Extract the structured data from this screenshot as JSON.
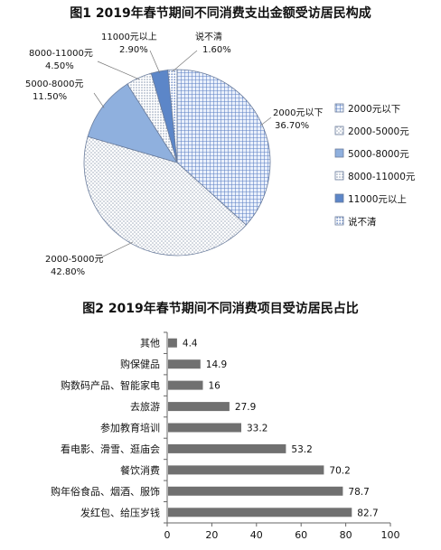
{
  "chart_data": [
    {
      "type": "pie",
      "title": "图1  2019年春节期间不同消费支出金额受访居民构成",
      "categories": [
        "2000元以下",
        "2000-5000元",
        "5000-8000元",
        "8000-11000元",
        "11000元以上",
        "说不清"
      ],
      "values": [
        36.7,
        42.8,
        11.5,
        4.5,
        2.9,
        1.6
      ],
      "value_labels": [
        "36.70%",
        "42.80%",
        "11.50%",
        "4.50%",
        "2.90%",
        "1.60%"
      ],
      "slice_labels": [
        "2000元以下",
        "2000-5000元",
        "5000-8000元",
        "8000-11000元",
        "11000元以上",
        "说不清"
      ],
      "legend": {
        "position": "right",
        "items": [
          "2000元以下",
          "2000-5000元",
          "5000-8000元",
          "8000-11000元",
          "11000元以上",
          "说不清"
        ]
      },
      "colors": [
        "#5b7fc4",
        "#9aa6b8",
        "#8fb0de",
        "#b8c2d2",
        "#5c86c8",
        "#9fb0d8"
      ],
      "patterns": [
        "grid",
        "dots",
        "fill",
        "dots",
        "fill",
        "dots"
      ]
    },
    {
      "type": "bar",
      "orientation": "horizontal",
      "title": "图2 2019年春节期间不同消费项目受访居民占比",
      "categories": [
        "其他",
        "购保健品",
        "购数码产品、智能家电",
        "去旅游",
        "参加教育培训",
        "看电影、滑雪、逛庙会",
        "餐饮消费",
        "购年俗食品、烟酒、服饰",
        "发红包、给压岁钱"
      ],
      "values": [
        4.4,
        14.9,
        16,
        27.9,
        33.2,
        53.2,
        70.2,
        78.7,
        82.7
      ],
      "value_labels": [
        "4.4",
        "14.9",
        "16",
        "27.9",
        "33.2",
        "53.2",
        "70.2",
        "78.7",
        "82.7"
      ],
      "xlim": [
        0,
        100
      ],
      "xticks": [
        "0",
        "20",
        "40",
        "60",
        "80",
        "100"
      ],
      "xlabel": "",
      "ylabel": "",
      "grid": false,
      "bar_color": "#707070"
    }
  ]
}
